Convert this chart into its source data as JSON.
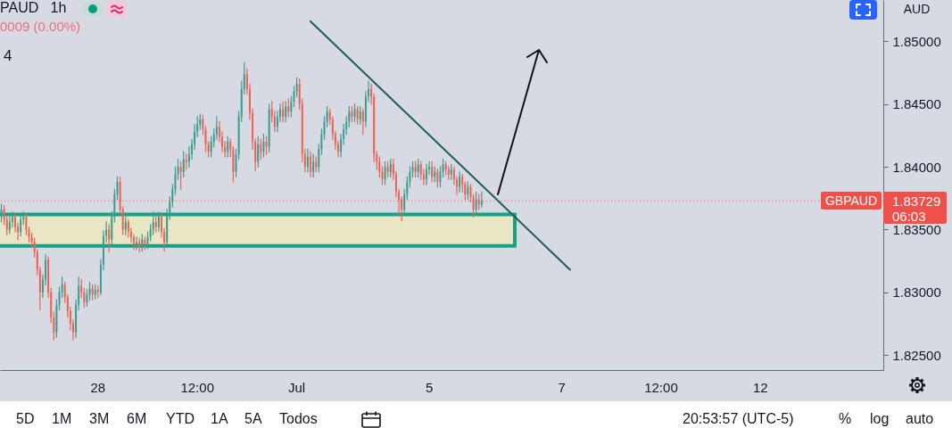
{
  "chart_data": {
    "type": "candlestick",
    "title": "PAUD   1h",
    "ylabel": "AUD",
    "categories": [
      null,
      null,
      null,
      null,
      null,
      null,
      null,
      null,
      null,
      null,
      null,
      null,
      null,
      null,
      null,
      null,
      null,
      null,
      null,
      null,
      null,
      null,
      null,
      null,
      null,
      null,
      null,
      null,
      null,
      null,
      null,
      null,
      null,
      null,
      null,
      "28",
      null,
      null,
      null,
      null,
      null,
      null,
      null,
      null,
      null,
      null,
      null,
      null,
      null,
      null,
      null,
      null,
      null,
      null,
      null,
      null,
      null,
      null,
      null,
      null,
      null,
      null,
      null,
      null,
      null,
      null,
      null,
      null,
      null,
      null,
      null,
      "12:00",
      null,
      null,
      null,
      null,
      null,
      null,
      null,
      null,
      null,
      null,
      null,
      null,
      null,
      null,
      null,
      null,
      null,
      null,
      null,
      null,
      null,
      null,
      null,
      null,
      null,
      null,
      null,
      null,
      null,
      null,
      null,
      null,
      null,
      null,
      null,
      "Jul",
      null,
      null,
      null,
      null,
      null,
      null,
      null,
      null,
      null,
      null,
      null,
      null,
      null,
      null,
      null,
      null,
      null,
      null,
      null,
      null,
      null,
      null,
      null,
      null,
      null,
      null,
      null,
      null,
      null,
      null,
      null,
      null,
      null,
      null,
      null,
      null,
      null,
      null,
      null,
      null,
      null,
      null,
      null,
      null,
      null,
      null,
      null,
      "5",
      null,
      null,
      null,
      null,
      null,
      null,
      null,
      null,
      null,
      null,
      null,
      null,
      null,
      null,
      null,
      null,
      null,
      null,
      null,
      null,
      null,
      null,
      null,
      null,
      null,
      null,
      null,
      null,
      null,
      null,
      null,
      null,
      null,
      null,
      null,
      null,
      null,
      null,
      null,
      null,
      null,
      null,
      null,
      null,
      null,
      null,
      null,
      "7",
      null,
      null,
      null,
      null,
      null,
      null,
      null,
      null,
      null,
      null,
      null,
      null,
      null,
      null,
      null,
      null,
      null,
      null,
      null,
      null,
      null,
      null,
      null,
      null,
      null,
      null,
      null,
      null,
      null,
      null,
      null,
      null,
      null,
      null,
      null,
      "12:00",
      null,
      null,
      null,
      null,
      null,
      null,
      null,
      null,
      null,
      null,
      null,
      null,
      null,
      null,
      null,
      null,
      null,
      null,
      null,
      null,
      null,
      null,
      null,
      null,
      null,
      null,
      null,
      null,
      null,
      null,
      null,
      null,
      null,
      null,
      null,
      "12",
      null,
      null,
      null,
      null,
      null,
      null,
      null,
      null,
      null,
      null,
      null,
      null,
      null,
      null,
      null,
      null,
      null,
      null,
      null,
      null,
      null,
      null,
      null,
      null,
      null,
      null,
      null,
      null,
      null,
      null,
      null,
      null,
      null,
      null,
      null,
      null,
      null,
      null,
      null,
      null,
      null,
      null,
      null,
      null
    ],
    "ohlc": [
      [
        1.836,
        1.837,
        1.8356,
        1.8366
      ],
      [
        1.8366,
        1.8369,
        1.8354,
        1.8358
      ],
      [
        1.8358,
        1.836,
        1.8346,
        1.835
      ],
      [
        1.835,
        1.836,
        1.8347,
        1.8356
      ],
      [
        1.8356,
        1.8364,
        1.8352,
        1.836
      ],
      [
        1.836,
        1.8362,
        1.8348,
        1.8352
      ],
      [
        1.8352,
        1.8355,
        1.8342,
        1.8348
      ],
      [
        1.8348,
        1.8362,
        1.8345,
        1.8358
      ],
      [
        1.8358,
        1.8364,
        1.8354,
        1.836
      ],
      [
        1.836,
        1.8362,
        1.8346,
        1.835
      ],
      [
        1.835,
        1.8352,
        1.834,
        1.8344
      ],
      [
        1.8344,
        1.8347,
        1.8336,
        1.834
      ],
      [
        1.834,
        1.8343,
        1.8328,
        1.8332
      ],
      [
        1.8332,
        1.8334,
        1.8314,
        1.8318
      ],
      [
        1.8318,
        1.832,
        1.8286,
        1.83
      ],
      [
        1.83,
        1.8314,
        1.8296,
        1.831
      ],
      [
        1.831,
        1.833,
        1.8306,
        1.8326
      ],
      [
        1.8326,
        1.8328,
        1.8296,
        1.83
      ],
      [
        1.83,
        1.8303,
        1.8276,
        1.828
      ],
      [
        1.828,
        1.8284,
        1.8262,
        1.8268
      ],
      [
        1.8268,
        1.8294,
        1.8264,
        1.829
      ],
      [
        1.829,
        1.8304,
        1.8286,
        1.83
      ],
      [
        1.83,
        1.8312,
        1.8296,
        1.8306
      ],
      [
        1.8306,
        1.8308,
        1.8292,
        1.8296
      ],
      [
        1.8296,
        1.8298,
        1.828,
        1.8285
      ],
      [
        1.8285,
        1.8288,
        1.827,
        1.8275
      ],
      [
        1.8275,
        1.8278,
        1.8262,
        1.8268
      ],
      [
        1.8268,
        1.8294,
        1.8264,
        1.829
      ],
      [
        1.829,
        1.8312,
        1.8286,
        1.8305
      ],
      [
        1.8305,
        1.831,
        1.8296,
        1.83
      ],
      [
        1.83,
        1.8303,
        1.8288,
        1.8292
      ],
      [
        1.8292,
        1.8302,
        1.8289,
        1.8298
      ],
      [
        1.8298,
        1.8308,
        1.8294,
        1.8303
      ],
      [
        1.8303,
        1.8306,
        1.8294,
        1.8298
      ],
      [
        1.8298,
        1.8306,
        1.8295,
        1.8302
      ],
      [
        1.8302,
        1.8305,
        1.8296,
        1.83
      ],
      [
        1.83,
        1.8326,
        1.8298,
        1.8322
      ],
      [
        1.8322,
        1.8349,
        1.8318,
        1.8345
      ],
      [
        1.8345,
        1.8356,
        1.834,
        1.835
      ],
      [
        1.835,
        1.8354,
        1.8332,
        1.8342
      ],
      [
        1.8342,
        1.8364,
        1.8338,
        1.836
      ],
      [
        1.836,
        1.8382,
        1.8356,
        1.8378
      ],
      [
        1.8378,
        1.8392,
        1.8374,
        1.8388
      ],
      [
        1.8388,
        1.8392,
        1.8362,
        1.8366
      ],
      [
        1.8366,
        1.8368,
        1.8346,
        1.835
      ],
      [
        1.835,
        1.836,
        1.8346,
        1.8356
      ],
      [
        1.8356,
        1.8358,
        1.8344,
        1.8348
      ],
      [
        1.8348,
        1.8351,
        1.834,
        1.8344
      ],
      [
        1.8344,
        1.8346,
        1.8334,
        1.8338
      ],
      [
        1.8338,
        1.8344,
        1.8334,
        1.834
      ],
      [
        1.834,
        1.8343,
        1.8332,
        1.8336
      ],
      [
        1.8336,
        1.8346,
        1.8333,
        1.8342
      ],
      [
        1.8342,
        1.8344,
        1.8334,
        1.8338
      ],
      [
        1.8338,
        1.8348,
        1.8335,
        1.8344
      ],
      [
        1.8344,
        1.8354,
        1.8341,
        1.835
      ],
      [
        1.835,
        1.8364,
        1.8346,
        1.8356
      ],
      [
        1.8356,
        1.836,
        1.8348,
        1.8352
      ],
      [
        1.8352,
        1.8364,
        1.8349,
        1.836
      ],
      [
        1.836,
        1.8362,
        1.8344,
        1.8348
      ],
      [
        1.8348,
        1.8351,
        1.8333,
        1.834
      ],
      [
        1.834,
        1.8366,
        1.8338,
        1.8362
      ],
      [
        1.8362,
        1.8376,
        1.8358,
        1.8372
      ],
      [
        1.8372,
        1.8386,
        1.8368,
        1.8382
      ],
      [
        1.8382,
        1.84,
        1.8378,
        1.8394
      ],
      [
        1.8394,
        1.8406,
        1.839,
        1.84
      ],
      [
        1.84,
        1.8404,
        1.8382,
        1.8396
      ],
      [
        1.8396,
        1.8412,
        1.8392,
        1.8406
      ],
      [
        1.8406,
        1.841,
        1.8398,
        1.8404
      ],
      [
        1.8404,
        1.8416,
        1.84,
        1.841
      ],
      [
        1.841,
        1.8422,
        1.8406,
        1.8418
      ],
      [
        1.8418,
        1.8434,
        1.8414,
        1.8428
      ],
      [
        1.8428,
        1.844,
        1.8424,
        1.8434
      ],
      [
        1.8434,
        1.8442,
        1.843,
        1.8438
      ],
      [
        1.8438,
        1.8441,
        1.8426,
        1.843
      ],
      [
        1.843,
        1.8432,
        1.8412,
        1.8418
      ],
      [
        1.8418,
        1.842,
        1.8408,
        1.8412
      ],
      [
        1.8412,
        1.8424,
        1.8408,
        1.842
      ],
      [
        1.842,
        1.843,
        1.8416,
        1.8426
      ],
      [
        1.8426,
        1.844,
        1.8422,
        1.8432
      ],
      [
        1.8432,
        1.8436,
        1.842,
        1.8424
      ],
      [
        1.8424,
        1.8428,
        1.8412,
        1.8416
      ],
      [
        1.8416,
        1.842,
        1.8408,
        1.8412
      ],
      [
        1.8412,
        1.8424,
        1.8408,
        1.842
      ],
      [
        1.842,
        1.8422,
        1.8408,
        1.8414
      ],
      [
        1.8414,
        1.8416,
        1.8388,
        1.8396
      ],
      [
        1.8396,
        1.8414,
        1.8392,
        1.841
      ],
      [
        1.841,
        1.8444,
        1.8406,
        1.844
      ],
      [
        1.844,
        1.8468,
        1.8436,
        1.8462
      ],
      [
        1.8462,
        1.8483,
        1.8458,
        1.8474
      ],
      [
        1.8474,
        1.8478,
        1.8458,
        1.8462
      ],
      [
        1.8462,
        1.8466,
        1.8438,
        1.8443
      ],
      [
        1.8443,
        1.8446,
        1.8414,
        1.842
      ],
      [
        1.842,
        1.8422,
        1.8397,
        1.8404
      ],
      [
        1.8404,
        1.8424,
        1.84,
        1.8418
      ],
      [
        1.8418,
        1.8422,
        1.8406,
        1.8412
      ],
      [
        1.8412,
        1.8426,
        1.8408,
        1.842
      ],
      [
        1.842,
        1.8424,
        1.841,
        1.8416
      ],
      [
        1.8416,
        1.845,
        1.8412,
        1.8446
      ],
      [
        1.8446,
        1.8452,
        1.8436,
        1.844
      ],
      [
        1.844,
        1.8444,
        1.8428,
        1.8432
      ],
      [
        1.8432,
        1.8444,
        1.8428,
        1.844
      ],
      [
        1.844,
        1.845,
        1.8436,
        1.8446
      ],
      [
        1.8446,
        1.8452,
        1.8436,
        1.844
      ],
      [
        1.844,
        1.8452,
        1.8436,
        1.8448
      ],
      [
        1.8448,
        1.8454,
        1.844,
        1.8444
      ],
      [
        1.8444,
        1.8456,
        1.844,
        1.8452
      ],
      [
        1.8452,
        1.8464,
        1.8448,
        1.846
      ],
      [
        1.846,
        1.8471,
        1.8456,
        1.8466
      ],
      [
        1.8466,
        1.847,
        1.8446,
        1.845
      ],
      [
        1.845,
        1.8454,
        1.8404,
        1.841
      ],
      [
        1.841,
        1.8414,
        1.8396,
        1.84
      ],
      [
        1.84,
        1.8414,
        1.8396,
        1.8408
      ],
      [
        1.8408,
        1.8412,
        1.8392,
        1.8396
      ],
      [
        1.8396,
        1.841,
        1.8392,
        1.8404
      ],
      [
        1.8404,
        1.8408,
        1.8396,
        1.84
      ],
      [
        1.84,
        1.8418,
        1.8396,
        1.8414
      ],
      [
        1.8414,
        1.843,
        1.841,
        1.8426
      ],
      [
        1.8426,
        1.844,
        1.8422,
        1.8436
      ],
      [
        1.8436,
        1.8448,
        1.8432,
        1.8444
      ],
      [
        1.8444,
        1.8446,
        1.8434,
        1.8438
      ],
      [
        1.8438,
        1.844,
        1.8422,
        1.8426
      ],
      [
        1.8426,
        1.8428,
        1.8414,
        1.8418
      ],
      [
        1.8418,
        1.842,
        1.8408,
        1.8412
      ],
      [
        1.8412,
        1.8426,
        1.8408,
        1.8422
      ],
      [
        1.8422,
        1.8434,
        1.8418,
        1.843
      ],
      [
        1.843,
        1.844,
        1.8426,
        1.8436
      ],
      [
        1.8436,
        1.8448,
        1.8432,
        1.8444
      ],
      [
        1.8444,
        1.8448,
        1.8436,
        1.844
      ],
      [
        1.844,
        1.845,
        1.8436,
        1.8446
      ],
      [
        1.8446,
        1.8448,
        1.8434,
        1.8438
      ],
      [
        1.8438,
        1.8448,
        1.8434,
        1.8444
      ],
      [
        1.8444,
        1.8446,
        1.8426,
        1.8436
      ],
      [
        1.8436,
        1.846,
        1.8432,
        1.8456
      ],
      [
        1.8456,
        1.8468,
        1.8452,
        1.8462
      ],
      [
        1.8462,
        1.8466,
        1.845,
        1.8456
      ],
      [
        1.8456,
        1.8458,
        1.8404,
        1.841
      ],
      [
        1.841,
        1.8412,
        1.8398,
        1.8404
      ],
      [
        1.8404,
        1.8408,
        1.8392,
        1.8396
      ],
      [
        1.8396,
        1.84,
        1.8386,
        1.839
      ],
      [
        1.839,
        1.8404,
        1.8386,
        1.84
      ],
      [
        1.84,
        1.8404,
        1.8392,
        1.8396
      ],
      [
        1.8396,
        1.8406,
        1.8392,
        1.8402
      ],
      [
        1.8402,
        1.8406,
        1.839,
        1.8394
      ],
      [
        1.8394,
        1.8396,
        1.8376,
        1.838
      ],
      [
        1.838,
        1.8382,
        1.8362,
        1.8374
      ],
      [
        1.8374,
        1.8376,
        1.8357,
        1.8366
      ],
      [
        1.8366,
        1.8382,
        1.8362,
        1.8378
      ],
      [
        1.8378,
        1.8392,
        1.8374,
        1.8388
      ],
      [
        1.8388,
        1.84,
        1.8384,
        1.8396
      ],
      [
        1.8396,
        1.8404,
        1.8392,
        1.84
      ],
      [
        1.84,
        1.8404,
        1.8392,
        1.8396
      ],
      [
        1.8396,
        1.8406,
        1.8392,
        1.8402
      ],
      [
        1.8402,
        1.8404,
        1.839,
        1.8394
      ],
      [
        1.8394,
        1.8398,
        1.8386,
        1.839
      ],
      [
        1.839,
        1.8402,
        1.8386,
        1.8398
      ],
      [
        1.8398,
        1.8404,
        1.8394,
        1.84
      ],
      [
        1.84,
        1.8404,
        1.8388,
        1.8392
      ],
      [
        1.8392,
        1.84,
        1.8388,
        1.8396
      ],
      [
        1.8396,
        1.8398,
        1.8384,
        1.8388
      ],
      [
        1.8388,
        1.84,
        1.8384,
        1.8396
      ],
      [
        1.8396,
        1.8406,
        1.8392,
        1.8402
      ],
      [
        1.8402,
        1.8404,
        1.8394,
        1.8398
      ],
      [
        1.8398,
        1.84,
        1.839,
        1.8394
      ],
      [
        1.8394,
        1.8402,
        1.839,
        1.8398
      ],
      [
        1.8398,
        1.84,
        1.8386,
        1.839
      ],
      [
        1.839,
        1.8392,
        1.8378,
        1.8384
      ],
      [
        1.8384,
        1.8396,
        1.838,
        1.8392
      ],
      [
        1.8392,
        1.8394,
        1.838,
        1.8386
      ],
      [
        1.8386,
        1.8388,
        1.8374,
        1.8378
      ],
      [
        1.8378,
        1.8388,
        1.8374,
        1.8384
      ],
      [
        1.8384,
        1.8386,
        1.8372,
        1.8376
      ],
      [
        1.8376,
        1.8378,
        1.836,
        1.8366
      ],
      [
        1.8366,
        1.838,
        1.8362,
        1.8374
      ],
      [
        1.8374,
        1.8378,
        1.8366,
        1.837
      ],
      [
        1.837,
        1.838,
        1.8368,
        1.8373
      ],
      null,
      null,
      null,
      null,
      null,
      null,
      null,
      null,
      null,
      null,
      null,
      null,
      null,
      null,
      null,
      null,
      null,
      null,
      null,
      null,
      null,
      null,
      null,
      null,
      null,
      null,
      null,
      null,
      null,
      null,
      null,
      null,
      null,
      null,
      null,
      null,
      null,
      null,
      null,
      null,
      null,
      null,
      null,
      null,
      null,
      null,
      null,
      null,
      null,
      null,
      null,
      null,
      null,
      null,
      null,
      null,
      null,
      null,
      null,
      null,
      null,
      null,
      null,
      null,
      null,
      null,
      null,
      null,
      null,
      null,
      null,
      null,
      null,
      null,
      null,
      null,
      null,
      null,
      null,
      null,
      null,
      null,
      null,
      null,
      null,
      null,
      null,
      null,
      null,
      null,
      null,
      null,
      null,
      null,
      null,
      null,
      null,
      null,
      null,
      null,
      null,
      null,
      null,
      null,
      null,
      null,
      null,
      null,
      null,
      null,
      null,
      null,
      null,
      null,
      null,
      null,
      null,
      null,
      null,
      null,
      null,
      null,
      null,
      null,
      null,
      null,
      null,
      null,
      null,
      null,
      null,
      null,
      null,
      null,
      null,
      null,
      null,
      null,
      null,
      null,
      null,
      null,
      null,
      null,
      null
    ],
    "colors": [
      "#3d9d8f",
      "#ee6257",
      "#ee6257",
      "#3d9d8f",
      "#3d9d8f",
      "#ee6257",
      "#ee6257",
      "#3d9d8f",
      "#3d9d8f",
      "#ee6257",
      "#ee6257",
      "#ee6257",
      "#ee6257",
      "#ee6257",
      "#ee6257",
      "#3d9d8f",
      "#3d9d8f",
      "#ee6257",
      "#ee6257",
      "#ee6257",
      "#3d9d8f",
      "#3d9d8f",
      "#3d9d8f",
      "#ee6257",
      "#ee6257",
      "#ee6257",
      "#ee6257",
      "#3d9d8f",
      "#3d9d8f",
      "#ee6257",
      "#ee6257",
      "#3d9d8f",
      "#3d9d8f",
      "#ee6257",
      "#3d9d8f",
      "#ee6257",
      "#3d9d8f",
      "#3d9d8f",
      "#3d9d8f",
      "#ee6257",
      "#3d9d8f",
      "#3d9d8f",
      "#3d9d8f",
      "#ee6257",
      "#ee6257",
      "#3d9d8f",
      "#ee6257",
      "#ee6257",
      "#ee6257",
      "#3d9d8f",
      "#ee6257",
      "#3d9d8f",
      "#ee6257",
      "#3d9d8f",
      "#3d9d8f",
      "#3d9d8f",
      "#ee6257",
      "#3d9d8f",
      "#ee6257",
      "#ee6257",
      "#3d9d8f",
      "#3d9d8f",
      "#3d9d8f",
      "#3d9d8f",
      "#3d9d8f",
      "#ee6257",
      "#3d9d8f",
      "#ee6257",
      "#3d9d8f",
      "#3d9d8f",
      "#3d9d8f",
      "#3d9d8f",
      "#3d9d8f",
      "#ee6257",
      "#ee6257",
      "#ee6257",
      "#3d9d8f",
      "#3d9d8f",
      "#3d9d8f",
      "#ee6257",
      "#ee6257",
      "#ee6257",
      "#3d9d8f",
      "#ee6257",
      "#ee6257",
      "#3d9d8f",
      "#3d9d8f",
      "#3d9d8f",
      "#3d9d8f",
      "#ee6257",
      "#ee6257",
      "#ee6257",
      "#ee6257",
      "#3d9d8f",
      "#ee6257",
      "#3d9d8f",
      "#ee6257",
      "#3d9d8f",
      "#ee6257",
      "#ee6257",
      "#3d9d8f",
      "#3d9d8f",
      "#ee6257",
      "#3d9d8f",
      "#ee6257",
      "#3d9d8f",
      "#3d9d8f",
      "#3d9d8f",
      "#ee6257",
      "#ee6257",
      "#ee6257",
      "#3d9d8f",
      "#ee6257",
      "#3d9d8f",
      "#ee6257",
      "#3d9d8f",
      "#3d9d8f",
      "#3d9d8f",
      "#3d9d8f",
      "#ee6257",
      "#ee6257",
      "#ee6257",
      "#ee6257",
      "#3d9d8f",
      "#3d9d8f",
      "#3d9d8f",
      "#3d9d8f",
      "#ee6257",
      "#3d9d8f",
      "#ee6257",
      "#3d9d8f",
      "#ee6257",
      "#3d9d8f",
      "#3d9d8f",
      "#ee6257",
      "#ee6257",
      "#ee6257",
      "#ee6257",
      "#ee6257",
      "#3d9d8f",
      "#ee6257",
      "#3d9d8f",
      "#ee6257",
      "#ee6257",
      "#ee6257",
      "#ee6257",
      "#3d9d8f",
      "#3d9d8f",
      "#3d9d8f",
      "#3d9d8f",
      "#ee6257",
      "#3d9d8f",
      "#ee6257",
      "#ee6257",
      "#3d9d8f",
      "#3d9d8f",
      "#ee6257",
      "#3d9d8f",
      "#ee6257",
      "#3d9d8f",
      "#3d9d8f",
      "#ee6257",
      "#ee6257",
      "#3d9d8f",
      "#ee6257",
      "#ee6257",
      "#3d9d8f",
      "#ee6257",
      "#ee6257",
      "#3d9d8f",
      "#ee6257",
      "#ee6257",
      "#3d9d8f",
      "#ee6257",
      "#3d9d8f",
      null,
      null,
      null,
      null,
      null,
      null,
      null,
      null,
      null,
      null,
      null,
      null,
      null,
      null,
      null,
      null,
      null,
      null,
      null,
      null,
      null,
      null,
      null,
      null,
      null,
      null,
      null,
      null,
      null,
      null,
      null,
      null,
      null,
      null,
      null,
      null,
      null,
      null,
      null,
      null,
      null,
      null,
      null,
      null,
      null,
      null,
      null,
      null,
      null,
      null,
      null,
      null,
      null,
      null,
      null,
      null,
      null,
      null,
      null,
      null,
      null,
      null,
      null,
      null,
      null,
      null,
      null,
      null,
      null,
      null,
      null,
      null,
      null,
      null,
      null,
      null,
      null,
      null,
      null,
      null,
      null,
      null,
      null,
      null,
      null,
      null,
      null,
      null,
      null,
      null,
      null,
      null,
      null,
      null,
      null,
      null,
      null,
      null,
      null,
      null,
      null,
      null,
      null,
      null,
      null,
      null,
      null,
      null,
      null,
      null,
      null,
      null,
      null,
      null,
      null,
      null,
      null,
      null,
      null,
      null,
      null,
      null,
      null,
      null,
      null,
      null,
      null,
      null,
      null,
      null,
      null,
      null,
      null,
      null,
      null,
      null,
      null,
      null,
      null,
      null,
      null,
      null,
      null,
      null,
      null
    ],
    "series": [
      {
        "type": "line",
        "color": "#1d5e54",
        "values": [
          null,
          null,
          null,
          null,
          null,
          null,
          null,
          null,
          null,
          null,
          null,
          null,
          null,
          null,
          null,
          null,
          null,
          null,
          null,
          null,
          null,
          null,
          null,
          null,
          null,
          null,
          null,
          null,
          null,
          null,
          null,
          null,
          null,
          null,
          null,
          null,
          null,
          null,
          null,
          null,
          null,
          null,
          null,
          null,
          null,
          null,
          null,
          null,
          null,
          null,
          null,
          null,
          null,
          null,
          null,
          null,
          null,
          null,
          null,
          null,
          null,
          null,
          null,
          null,
          null,
          null,
          null,
          null,
          null,
          null,
          null,
          null,
          null,
          null,
          null,
          null,
          null,
          null,
          null,
          null,
          null,
          null,
          null,
          null,
          null,
          null,
          null,
          null,
          null,
          null,
          null,
          null,
          null,
          null,
          null,
          null,
          null,
          null,
          null,
          null,
          null,
          null,
          null,
          null,
          null,
          null,
          null,
          null,
          null,
          null,
          null,
          null,
          1.8516,
          null,
          null,
          null,
          null,
          null,
          null,
          null,
          null,
          null,
          null,
          null,
          null,
          null,
          null,
          null,
          null,
          null,
          null,
          null,
          null,
          null,
          null,
          null,
          null,
          null,
          null,
          null,
          null,
          null,
          null,
          null,
          null,
          null,
          null,
          null,
          null,
          null,
          null,
          null,
          null,
          null,
          null,
          null,
          null,
          null,
          null,
          null,
          null,
          null,
          null,
          null,
          null,
          null,
          null,
          null,
          null,
          null,
          null,
          null,
          null,
          null,
          null,
          null,
          null,
          null,
          null,
          null,
          null,
          null,
          null,
          null,
          null,
          null,
          null,
          null,
          null,
          null,
          null,
          null,
          null,
          null,
          null,
          null,
          null,
          null,
          null,
          null,
          null,
          null,
          null,
          null,
          null,
          null,
          1.8318,
          null,
          null,
          null,
          null,
          null,
          null,
          null,
          null,
          null,
          null,
          null,
          null,
          null,
          null,
          null,
          null,
          null,
          null,
          null,
          null,
          null,
          null,
          null,
          null,
          null,
          null,
          null,
          null,
          null,
          null,
          null,
          null,
          null,
          null,
          null,
          null,
          null,
          null,
          null,
          null,
          null,
          null,
          null,
          null,
          null,
          null,
          null,
          null,
          null,
          null,
          null,
          null,
          null,
          null,
          null,
          null,
          null,
          null,
          null,
          null,
          null,
          null,
          null,
          null,
          null,
          null,
          null,
          null,
          null,
          null,
          null,
          null,
          null,
          null,
          null,
          null,
          null,
          null,
          null,
          null,
          null,
          null,
          null,
          null,
          null,
          null,
          null,
          null,
          null,
          null,
          null,
          null,
          null,
          null,
          null,
          null,
          null,
          null,
          null,
          null,
          null,
          null,
          null,
          null,
          null,
          null,
          null,
          null,
          null,
          null,
          null,
          null,
          null
        ]
      }
    ],
    "ylim": [
      1.8238,
      1.8533
    ],
    "yticks": [
      {
        "value": 1.825,
        "label": "1.82500"
      },
      {
        "value": 1.83,
        "label": "1.83000"
      },
      {
        "value": 1.835,
        "label": "1.83500"
      },
      {
        "value": 1.84,
        "label": "1.84000"
      },
      {
        "value": 1.845,
        "label": "1.84500"
      },
      {
        "value": 1.85,
        "label": "1.85000"
      }
    ],
    "ref_lines": [
      {
        "axis": "y",
        "value": 1.83729,
        "label": "GBPAUD",
        "color": "#f0504a",
        "line_style": "dotted"
      }
    ],
    "bands": [
      {
        "axis": "y",
        "from": 1.8337,
        "to": 1.8362,
        "color": "#e8e6c4"
      }
    ],
    "annotations": [
      "0009 (0.00%)",
      "4",
      "1.83729",
      "06:03",
      "5D",
      "1M",
      "3M",
      "6M",
      "YTD",
      "1A",
      "5A",
      "Todos",
      "20:53:57 (UTC-5)",
      "%",
      "log",
      "auto"
    ]
  }
}
